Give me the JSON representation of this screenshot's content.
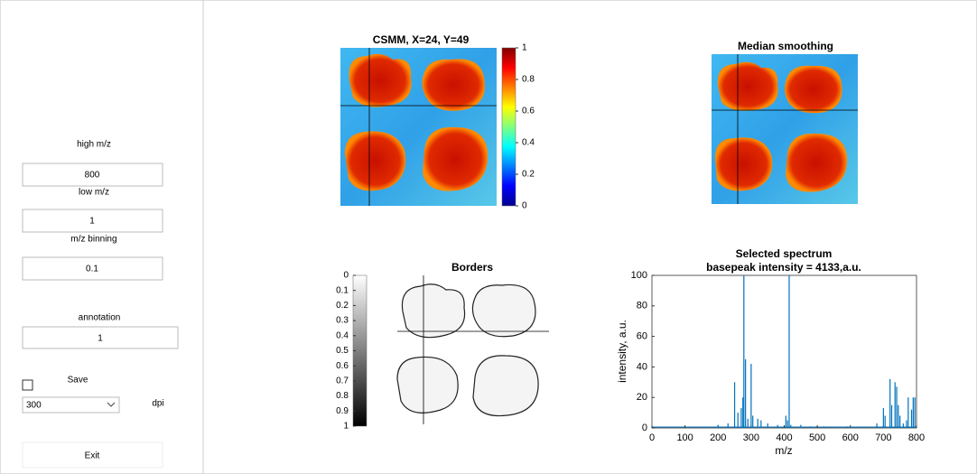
{
  "ui": {
    "high_mz": {
      "label": "high m/z",
      "value": "800"
    },
    "low_mz": {
      "label": "low m/z",
      "value": "1"
    },
    "binning": {
      "label": "m/z binning",
      "value": "0.1"
    },
    "annotation": {
      "label": "annotation",
      "value": "1"
    },
    "save": {
      "label": "Save"
    },
    "dpi": {
      "value": "300",
      "label": "dpi"
    },
    "exit": "Exit",
    "csmm": {
      "title": "CSMM, X=24, Y=49",
      "colorbar_ticks": [
        0,
        0.2,
        0.4,
        0.6,
        0.8,
        1
      ]
    },
    "median": {
      "title": "Median smoothing"
    },
    "borders": {
      "title": "Borders",
      "colorbar_ticks": [
        0,
        0.1,
        0.2,
        0.3,
        0.4,
        0.5,
        0.6,
        0.7,
        0.8,
        0.9,
        1
      ]
    }
  },
  "chart_data": {
    "type": "bar",
    "title": "Selected spectrum",
    "subtitle": "basepeak intensity = 4133,a.u.",
    "xlabel": "m/z",
    "ylabel": "intensity, a.u.",
    "color": "#0072bd",
    "x": [
      200,
      230,
      250,
      260,
      270,
      275,
      278,
      283,
      290,
      300,
      305,
      320,
      330,
      350,
      380,
      405,
      410,
      415,
      420,
      450,
      480,
      520,
      590,
      600,
      680,
      700,
      705,
      720,
      725,
      735,
      740,
      745,
      750,
      760,
      770,
      775,
      785,
      790,
      795
    ],
    "values": [
      2,
      3,
      30,
      10,
      13,
      20,
      100,
      45,
      6,
      42,
      8,
      6,
      5,
      3,
      2,
      8,
      5,
      100,
      2,
      2,
      1,
      1,
      1,
      1,
      3,
      13,
      8,
      32,
      15,
      30,
      27,
      15,
      8,
      3,
      5,
      20,
      12,
      20,
      20
    ],
    "xlim": [
      0,
      800
    ],
    "xticks": [
      0,
      100,
      200,
      300,
      400,
      500,
      600,
      700,
      800
    ],
    "ylim": [
      0,
      100
    ],
    "yticks": [
      0,
      20,
      40,
      60,
      80,
      100
    ]
  }
}
